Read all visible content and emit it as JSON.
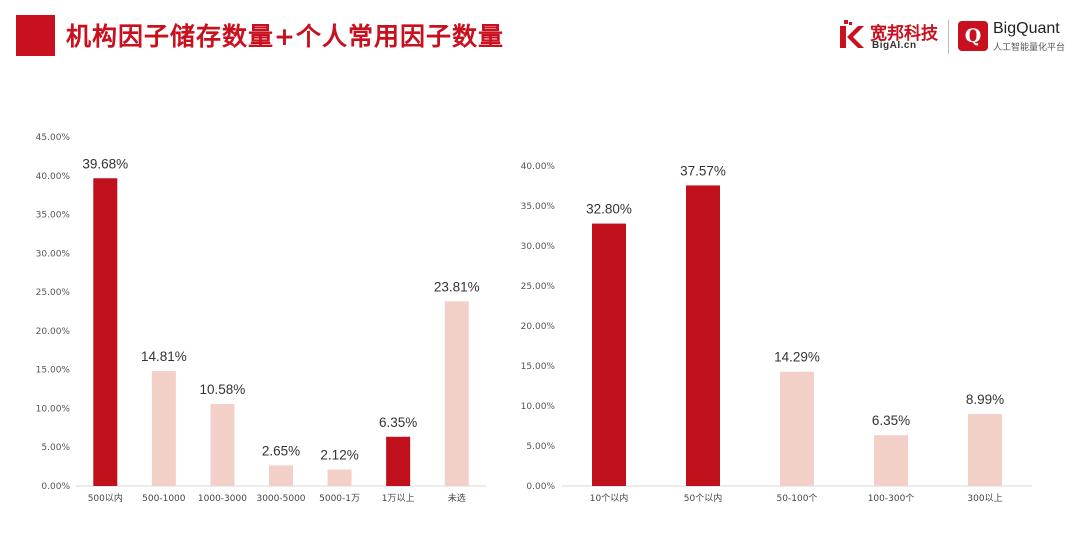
{
  "header": {
    "title": "机构因子储存数量+个人常用因子数量",
    "logo_cn": "宽邦科技",
    "logo_cn_sub": "BigAI.cn",
    "logo_q": "Q",
    "logo_en": "BigQuant",
    "logo_en_sub": "人工智能量化平台"
  },
  "colors": {
    "accent": "#c8101e",
    "strong_bar": "#c0101c",
    "light_bar": "#f2d0c8"
  },
  "chart_data": [
    {
      "type": "bar",
      "categories": [
        "500以内",
        "500-1000",
        "1000-3000",
        "3000-5000",
        "5000-1万",
        "1万以上",
        "未选"
      ],
      "values": [
        39.68,
        14.81,
        10.58,
        2.65,
        2.12,
        6.35,
        23.81
      ],
      "data_labels": [
        "39.68%",
        "14.81%",
        "10.58%",
        "2.65%",
        "2.12%",
        "6.35%",
        "23.81%"
      ],
      "highlight": [
        true,
        false,
        false,
        false,
        false,
        true,
        false
      ],
      "ylim": [
        0,
        45
      ],
      "yticks": [
        "0.00%",
        "5.00%",
        "10.00%",
        "15.00%",
        "20.00%",
        "25.00%",
        "30.00%",
        "35.00%",
        "40.00%",
        "45.00%"
      ],
      "grid": false,
      "legend": "none"
    },
    {
      "type": "bar",
      "categories": [
        "10个以内",
        "50个以内",
        "50-100个",
        "100-300个",
        "300以上"
      ],
      "values": [
        32.8,
        37.57,
        14.29,
        6.35,
        8.99
      ],
      "data_labels": [
        "32.80%",
        "37.57%",
        "14.29%",
        "6.35%",
        "8.99%"
      ],
      "highlight": [
        true,
        true,
        false,
        false,
        false
      ],
      "ylim": [
        0,
        40
      ],
      "yticks": [
        "0.00%",
        "5.00%",
        "10.00%",
        "15.00%",
        "20.00%",
        "25.00%",
        "30.00%",
        "35.00%",
        "40.00%"
      ],
      "grid": false,
      "legend": "none"
    }
  ]
}
